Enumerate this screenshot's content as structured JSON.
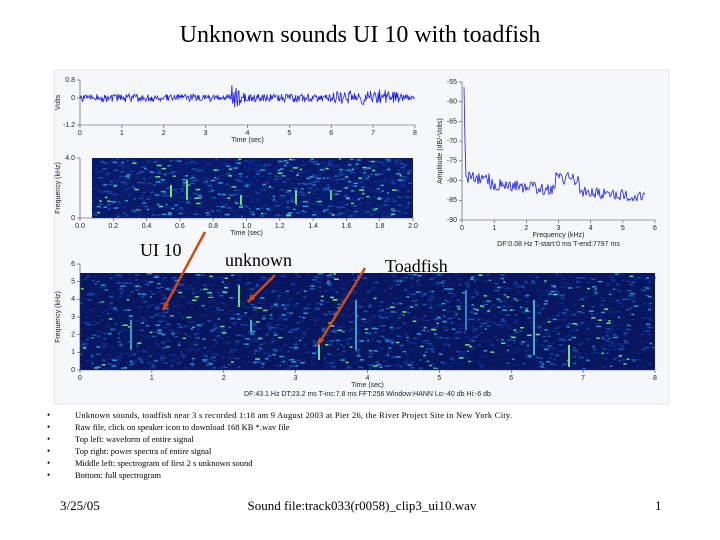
{
  "title": "Unknown sounds UI 10 with toadfish",
  "panels": [
    {
      "ylabel": "Volts",
      "xlabel": "Time (sec)",
      "xlim": [
        0,
        8
      ],
      "ylim": [
        -1.2,
        0.8
      ],
      "xticks": [
        0,
        1,
        2,
        3,
        4,
        5,
        6,
        7,
        8
      ],
      "yticks": [
        0.8,
        0,
        -1.2
      ]
    },
    {
      "ylabel": "Frequency (kHz)",
      "xlabel": "Time (sec)",
      "xlim": [
        0,
        2
      ],
      "ylim": [
        0,
        4
      ],
      "xticks": [
        {
          "value": 0,
          "label": "0.0"
        },
        0.2,
        0.4,
        0.6,
        0.8,
        {
          "value": 1,
          "label": "1.0"
        },
        1.2,
        1.4,
        1.6,
        1.8,
        {
          "value": 2,
          "label": "2.0"
        }
      ],
      "yticks": [
        0,
        {
          "value": 4,
          "label": "4.0"
        }
      ]
    },
    {
      "ylabel": "Amplitude (dB/-Volts)",
      "xlabel": "Frequency (kHz)",
      "xlim": [
        0,
        6
      ],
      "ylim": [
        -90,
        -55
      ],
      "xticks": [
        0,
        1,
        2,
        3,
        4,
        5,
        6
      ],
      "yticks": [
        -55,
        -60,
        -65,
        -70,
        -75,
        -80,
        -85,
        -90
      ],
      "info": "DF:0.08 Hz   T-start:0 ms   T-end:7797 ms"
    },
    {
      "ylabel": "Frequency (kHz)",
      "xlabel": "Time (sec)",
      "xlim": [
        0,
        8
      ],
      "ylim": [
        0,
        6
      ],
      "xticks": [
        0,
        1,
        2,
        3,
        4,
        5,
        6,
        7,
        8
      ],
      "yticks": [
        0,
        1,
        2,
        3,
        4,
        5,
        6
      ],
      "info": "DF:43.1 Hz   DT:23.2 ms   T-inc:7.8 ms   FFT:256   Window:HANN   Lo:-40 db   Hi:-6 db"
    }
  ],
  "annotations": [
    "UI 10",
    "unknown",
    "Toadfish"
  ],
  "bullets": [
    "Unknown sounds, toadfish near 3 s recorded 1:18 am 9 August 2003 at Pier 26, the River Project Site in New York City.",
    "Raw file, click on speaker icon to download 168 KB *.wav file",
    "Top left: waveform of entire signal",
    "Top right: power spectra of entire signal",
    "Middle left: spectrogram of first 2 s unknown sound",
    "Bottom: full spectrogram"
  ],
  "footer": {
    "date": "3/25/05",
    "file": "Sound file:track033(r0058)_clip3_ui10.wav",
    "page": "1"
  }
}
